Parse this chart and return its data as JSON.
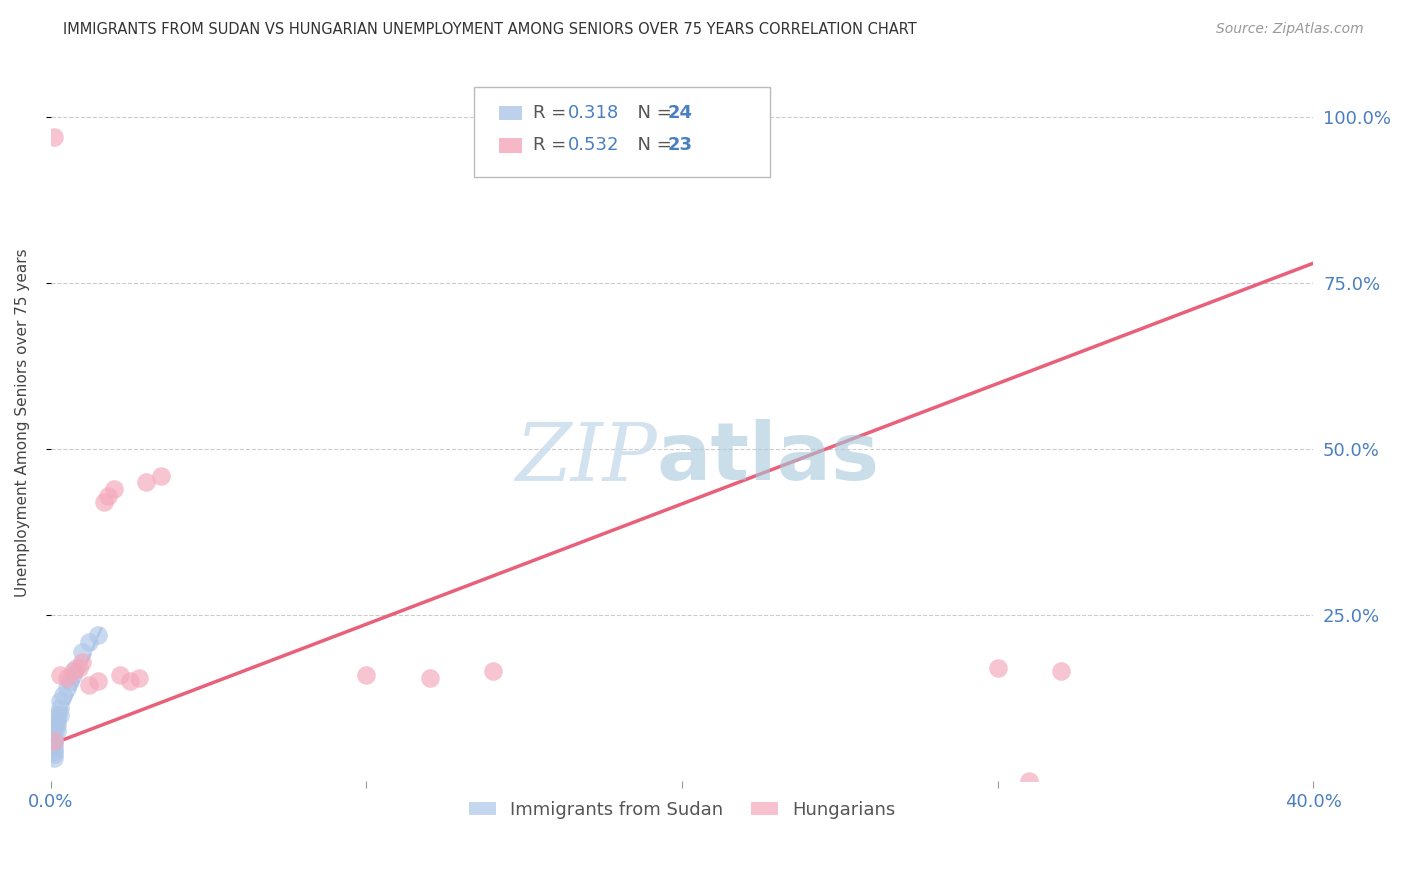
{
  "title": "IMMIGRANTS FROM SUDAN VS HUNGARIAN UNEMPLOYMENT AMONG SENIORS OVER 75 YEARS CORRELATION CHART",
  "source": "Source: ZipAtlas.com",
  "ylabel": "Unemployment Among Seniors over 75 years",
  "xlim": [
    0.0,
    0.4
  ],
  "ylim": [
    0.0,
    1.08
  ],
  "legend_r1": "0.318",
  "legend_n1": "24",
  "legend_r2": "0.532",
  "legend_n2": "23",
  "blue_color": "#adc6e8",
  "pink_color": "#f4a7b9",
  "pink_line_color": "#e8607a",
  "blue_dash_color": "#adc6e8",
  "sudan_x": [
    0.001,
    0.001,
    0.001,
    0.001,
    0.001,
    0.001,
    0.001,
    0.001,
    0.002,
    0.002,
    0.002,
    0.002,
    0.002,
    0.003,
    0.003,
    0.003,
    0.004,
    0.005,
    0.006,
    0.007,
    0.008,
    0.01,
    0.012,
    0.015
  ],
  "sudan_y": [
    0.035,
    0.04,
    0.045,
    0.05,
    0.055,
    0.06,
    0.07,
    0.08,
    0.075,
    0.085,
    0.09,
    0.095,
    0.1,
    0.1,
    0.11,
    0.12,
    0.13,
    0.14,
    0.15,
    0.16,
    0.17,
    0.195,
    0.21,
    0.22
  ],
  "hungarian_x": [
    0.001,
    0.001,
    0.003,
    0.005,
    0.007,
    0.009,
    0.01,
    0.012,
    0.015,
    0.017,
    0.018,
    0.02,
    0.022,
    0.025,
    0.028,
    0.03,
    0.035,
    0.1,
    0.12,
    0.14,
    0.3,
    0.31,
    0.32
  ],
  "hungarian_y": [
    0.06,
    0.97,
    0.16,
    0.155,
    0.165,
    0.17,
    0.18,
    0.145,
    0.15,
    0.42,
    0.43,
    0.44,
    0.16,
    0.15,
    0.155,
    0.45,
    0.46,
    0.16,
    0.155,
    0.165,
    0.17,
    0.0,
    0.165
  ],
  "blue_trendline_x": [
    0.0,
    0.016
  ],
  "blue_trendline_y": [
    0.055,
    0.23
  ],
  "pink_trendline_x": [
    0.0,
    0.4
  ],
  "pink_trendline_y": [
    0.055,
    0.78
  ]
}
